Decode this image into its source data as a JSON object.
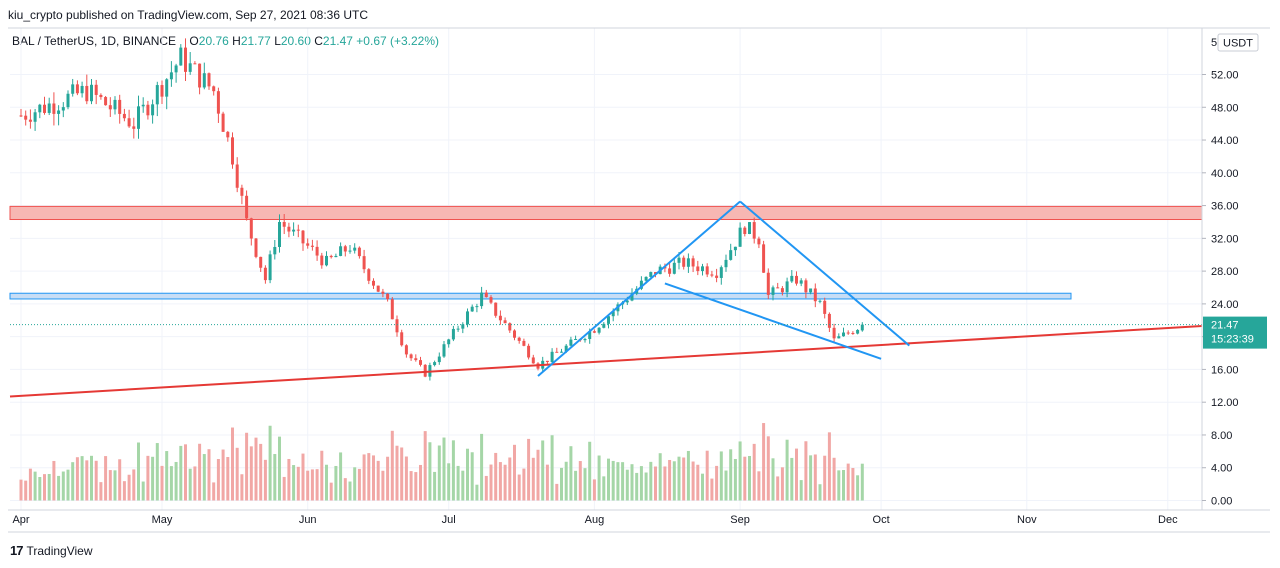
{
  "header": {
    "published": "kiu_crypto published on TradingView.com, Sep 27, 2021 08:36 UTC"
  },
  "legend": {
    "symbol": "BAL / TetherUS, 1D, BINANCE",
    "o_label": "O",
    "o": "20.76",
    "h_label": "H",
    "h": "21.77",
    "l_label": "L",
    "l": "20.60",
    "c_label": "C",
    "c": "21.47",
    "change": "+0.67 (+3.22%)"
  },
  "price_axis": {
    "currency": "USDT",
    "ticks": [
      "52.00",
      "48.00",
      "44.00",
      "40.00",
      "36.00",
      "32.00",
      "28.00",
      "24.00",
      "20.00",
      "16.00",
      "12.00",
      "8.00",
      "4.00",
      "0.00"
    ],
    "top_cut_label": "5"
  },
  "last_price": {
    "value": "21.47",
    "countdown": "15:23:39",
    "color": "#26a69a"
  },
  "time_axis": {
    "labels": [
      "Apr",
      "May",
      "Jun",
      "Jul",
      "Aug",
      "Sep",
      "Oct",
      "Nov",
      "Dec"
    ]
  },
  "footer": {
    "logo": "17",
    "brand": "TradingView"
  },
  "colors": {
    "up": "#26a69a",
    "down": "#ef5350",
    "vol_up": "#a5d6a7",
    "vol_down": "#f1a7a5",
    "drawing_blue": "#2196f3",
    "trend_red": "#e53935",
    "zone_red": "#f7b7b3",
    "zone_blue": "#c7ddf5"
  },
  "chart_data": {
    "type": "candlestick",
    "symbol": "BAL / TetherUS",
    "interval": "1D",
    "exchange": "BINANCE",
    "ylim": [
      0,
      56
    ],
    "x_range": [
      "2021-04-01",
      "2021-12-31"
    ],
    "month_labels": [
      "Apr",
      "May",
      "Jun",
      "Jul",
      "Aug",
      "Sep",
      "Oct",
      "Nov",
      "Dec"
    ],
    "price_anchors": [
      {
        "date": "2021-04-01",
        "close": 47
      },
      {
        "date": "2021-04-15",
        "close": 50
      },
      {
        "date": "2021-04-25",
        "close": 46
      },
      {
        "date": "2021-05-05",
        "close": 54
      },
      {
        "date": "2021-05-12",
        "close": 50
      },
      {
        "date": "2021-05-16",
        "close": 42
      },
      {
        "date": "2021-05-19",
        "close": 34
      },
      {
        "date": "2021-05-23",
        "close": 27
      },
      {
        "date": "2021-05-26",
        "close": 34
      },
      {
        "date": "2021-06-05",
        "close": 29
      },
      {
        "date": "2021-06-10",
        "close": 31
      },
      {
        "date": "2021-06-18",
        "close": 24
      },
      {
        "date": "2021-06-22",
        "close": 18
      },
      {
        "date": "2021-06-26",
        "close": 15.5
      },
      {
        "date": "2021-07-04",
        "close": 22
      },
      {
        "date": "2021-07-08",
        "close": 25
      },
      {
        "date": "2021-07-18",
        "close": 18
      },
      {
        "date": "2021-07-20",
        "close": 16.5
      },
      {
        "date": "2021-08-01",
        "close": 21
      },
      {
        "date": "2021-08-14",
        "close": 28
      },
      {
        "date": "2021-08-20",
        "close": 29
      },
      {
        "date": "2021-08-27",
        "close": 28
      },
      {
        "date": "2021-09-02",
        "close": 33.5
      },
      {
        "date": "2021-09-05",
        "close": 32
      },
      {
        "date": "2021-09-07",
        "close": 25
      },
      {
        "date": "2021-09-13",
        "close": 27
      },
      {
        "date": "2021-09-18",
        "close": 24
      },
      {
        "date": "2021-09-21",
        "close": 19.5
      },
      {
        "date": "2021-09-27",
        "close": 21.47
      }
    ],
    "last": {
      "open": 20.76,
      "high": 21.77,
      "low": 20.6,
      "close": 21.47
    },
    "zones": [
      {
        "color": "red",
        "from": 34.3,
        "to": 35.9
      },
      {
        "color": "blue",
        "from": 24.6,
        "to": 25.3
      }
    ],
    "trendlines": [
      {
        "color": "red",
        "points": [
          [
            "2021-04-01",
            12.7
          ],
          [
            "2021-12-31",
            21.3
          ]
        ]
      },
      {
        "color": "blue",
        "points": [
          [
            "2021-07-20",
            15.2
          ],
          [
            "2021-09-01",
            36.5
          ]
        ]
      },
      {
        "color": "blue",
        "points": [
          [
            "2021-09-01",
            36.5
          ],
          [
            "2021-10-07",
            18.9
          ]
        ]
      },
      {
        "color": "blue",
        "points": [
          [
            "2021-08-16",
            26.5
          ],
          [
            "2021-10-01",
            17.3
          ]
        ]
      }
    ],
    "volume": {
      "scale_max": 16,
      "peak": 14.2
    }
  }
}
